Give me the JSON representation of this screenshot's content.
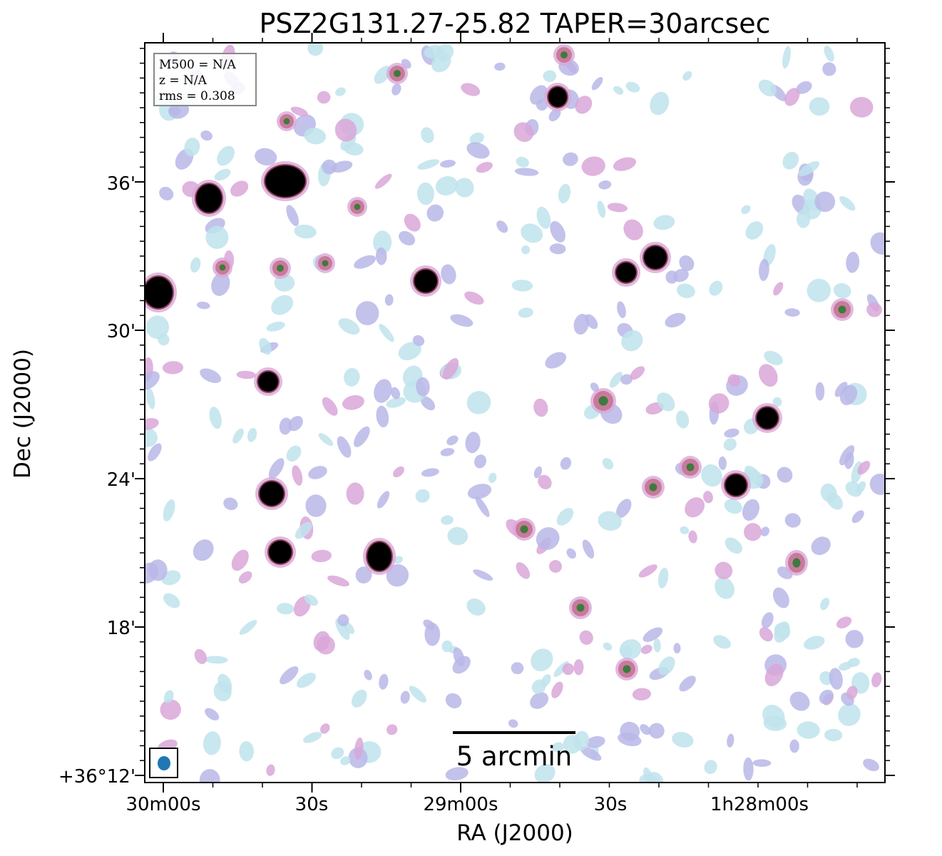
{
  "chart_data": {
    "type": "image",
    "title": "PSZ2G131.27-25.82 TAPER=30arcsec",
    "xlabel": "RA (J2000)",
    "ylabel": "Dec (J2000)",
    "x_ticks": [
      "30m00s",
      "30s",
      "29m00s",
      "30s",
      "1h28m00s"
    ],
    "y_ticks": [
      "+36°12'",
      "18'",
      "24'",
      "30'",
      "36'"
    ],
    "info_box": {
      "lines": [
        "M500 = N/A",
        "z = N/A",
        "rms = 0.308"
      ]
    },
    "scale_bar": {
      "label": "5 arcmin",
      "length_arcmin": 5
    },
    "beam_color": "#1f77b4",
    "colors": {
      "bright": "#000000",
      "halo": "#8e3f5a",
      "medium": "#c97a9a",
      "faint_pink": "#d9a7d8",
      "faint_lavender": "#b9b7e8",
      "faint_cyan": "#bfe3ec",
      "mid_green": "#3e7a3e"
    },
    "sources": [
      {
        "name": "src-1",
        "kind": "bright"
      },
      {
        "name": "src-2",
        "kind": "bright"
      },
      {
        "name": "src-3",
        "kind": "bright"
      },
      {
        "name": "src-4",
        "kind": "bright"
      },
      {
        "name": "src-5",
        "kind": "bright"
      },
      {
        "name": "src-6",
        "kind": "bright"
      },
      {
        "name": "src-7",
        "kind": "bright"
      },
      {
        "name": "src-8",
        "kind": "bright"
      },
      {
        "name": "src-9",
        "kind": "bright"
      },
      {
        "name": "src-10",
        "kind": "bright"
      },
      {
        "name": "src-11",
        "kind": "bright"
      },
      {
        "name": "src-12",
        "kind": "bright"
      },
      {
        "name": "src-13",
        "kind": "bright"
      },
      {
        "name": "src-14",
        "kind": "medium"
      },
      {
        "name": "src-15",
        "kind": "medium"
      },
      {
        "name": "src-16",
        "kind": "medium"
      },
      {
        "name": "src-17",
        "kind": "medium"
      },
      {
        "name": "src-18",
        "kind": "medium"
      },
      {
        "name": "src-19",
        "kind": "medium"
      },
      {
        "name": "src-20",
        "kind": "medium"
      },
      {
        "name": "src-21",
        "kind": "medium"
      },
      {
        "name": "src-22",
        "kind": "medium"
      },
      {
        "name": "src-23",
        "kind": "medium"
      },
      {
        "name": "src-24",
        "kind": "medium"
      },
      {
        "name": "src-25",
        "kind": "medium"
      },
      {
        "name": "src-26",
        "kind": "medium"
      },
      {
        "name": "src-27",
        "kind": "medium"
      },
      {
        "name": "src-28",
        "kind": "medium"
      }
    ]
  }
}
